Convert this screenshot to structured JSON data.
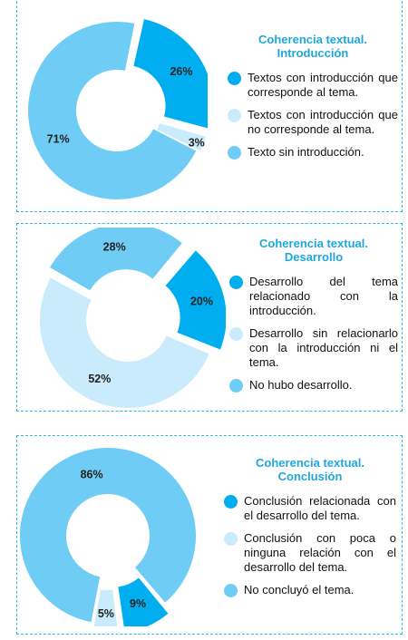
{
  "chart_data": [
    {
      "type": "pie",
      "title": "Coherencia textual. Introducción",
      "categories": [
        "Textos con introducción que corresponde al tema.",
        "Textos con introducción que no corresponde al tema.",
        "Texto sin introducción."
      ],
      "values": [
        26,
        3,
        71
      ],
      "value_labels": [
        "26%",
        "3%",
        "71%"
      ],
      "colors": [
        "#00adef",
        "#c9ebfb",
        "#6fcdf5"
      ],
      "legend_placement": "right"
    },
    {
      "type": "pie",
      "title": "Coherencia textual. Desarrollo",
      "categories": [
        "Desarrollo del tema relacionado con la introducción.",
        "Desarrollo sin relacionarlo con la introducción ni el tema.",
        "No hubo desarrollo."
      ],
      "values": [
        20,
        52,
        28
      ],
      "value_labels": [
        "20%",
        "52%",
        "28%"
      ],
      "colors": [
        "#00adef",
        "#c9ebfb",
        "#6fcdf5"
      ],
      "legend_placement": "right"
    },
    {
      "type": "pie",
      "title": "Coherencia textual. Conclusión",
      "categories": [
        "Conclusión relacionada con el desarrollo del tema.",
        "Conclusión con poca o ninguna relación con el desarrollo del tema.",
        "No concluyó el tema."
      ],
      "values": [
        9,
        5,
        86
      ],
      "value_labels": [
        "9%",
        "5%",
        "86%"
      ],
      "colors": [
        "#00adef",
        "#c9ebfb",
        "#6fcdf5"
      ],
      "legend_placement": "right"
    }
  ],
  "titles": [
    [
      "Coherencia textual.",
      "Introducción"
    ],
    [
      "Coherencia textual.",
      "Desarrollo"
    ],
    [
      "Coherencia textual.",
      "Conclusión"
    ]
  ]
}
